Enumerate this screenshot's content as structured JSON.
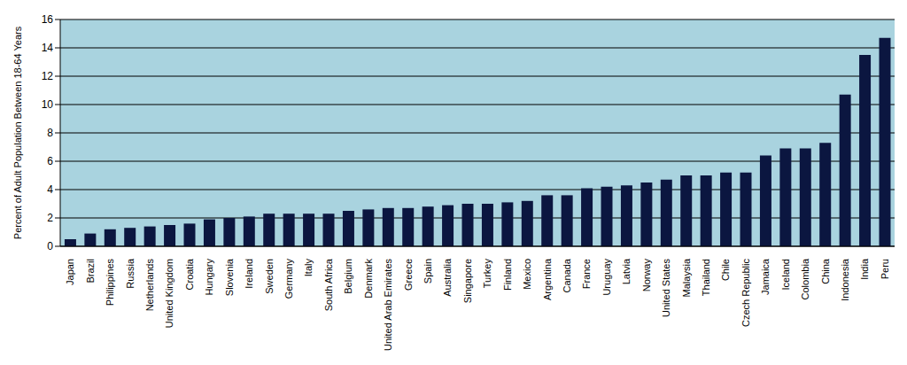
{
  "chart_data": {
    "type": "bar",
    "y_label": "Percent of Adult Population Between 18-64 Years",
    "categories": [
      "Japan",
      "Brazil",
      "Philippines",
      "Russia",
      "Netherlands",
      "United Kingdom",
      "Croatia",
      "Hungary",
      "Slovenia",
      "Ireland",
      "Sweden",
      "Germany",
      "Italy",
      "South Africa",
      "Belgium",
      "Denmark",
      "United Arab Emirates",
      "Greece",
      "Spain",
      "Australia",
      "Singapore",
      "Turkey",
      "Finland",
      "Mexico",
      "Argentina",
      "Canada",
      "France",
      "Uruguay",
      "Latvia",
      "Norway",
      "United States",
      "Malaysia",
      "Thailand",
      "Chile",
      "Czech Republic",
      "Jamaica",
      "Iceland",
      "Colombia",
      "China",
      "Indonesia",
      "India",
      "Peru"
    ],
    "values": [
      0.5,
      0.9,
      1.2,
      1.3,
      1.4,
      1.5,
      1.6,
      1.9,
      2.0,
      2.1,
      2.3,
      2.3,
      2.3,
      2.3,
      2.5,
      2.6,
      2.7,
      2.7,
      2.8,
      2.9,
      3.0,
      3.0,
      3.1,
      3.2,
      3.6,
      3.6,
      4.1,
      4.2,
      4.3,
      4.5,
      4.7,
      5.0,
      5.0,
      5.2,
      5.2,
      6.4,
      6.9,
      6.9,
      7.3,
      10.7,
      13.5,
      14.7
    ],
    "color": "#0b1640",
    "ylim": [
      0,
      16
    ],
    "yticks": [
      0,
      2,
      4,
      6,
      8,
      10,
      12,
      14,
      16
    ],
    "grid": true
  }
}
